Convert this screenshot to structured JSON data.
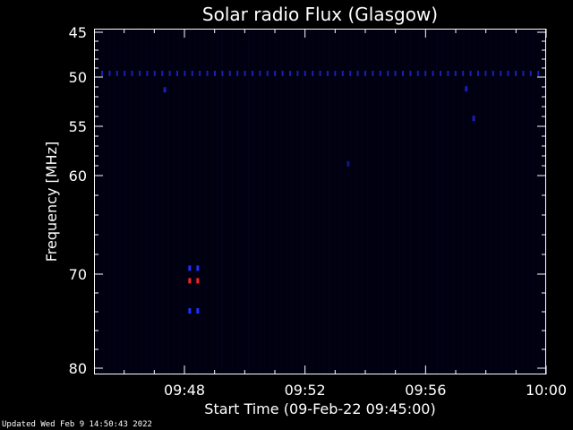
{
  "chart_data": {
    "type": "heatmap",
    "title": "Solar radio Flux (Glasgow)",
    "xlabel": "Start Time (09-Feb-22 09:45:00)",
    "ylabel": "Frequency [MHz]",
    "x_range": [
      "09:45",
      "10:00"
    ],
    "y_range": [
      45,
      80
    ],
    "y_inverted": true,
    "x_ticks": [
      "09:48",
      "09:52",
      "09:56",
      "10:00"
    ],
    "y_ticks": [
      45,
      50,
      55,
      60,
      70,
      80
    ],
    "grid": false,
    "background_color": "#000010",
    "features": [
      {
        "description": "persistent band",
        "freq": 49.6,
        "time_start": "09:45",
        "time_end": "10:00",
        "color": "#1c1cb8",
        "intensity": "low"
      },
      {
        "description": "burst",
        "freq": 69.4,
        "time": "09:48:15",
        "color": "#2030ff",
        "intensity": "medium"
      },
      {
        "description": "burst",
        "freq": 70.7,
        "time": "09:48:15",
        "color": "#ff2020",
        "intensity": "high"
      },
      {
        "description": "burst",
        "freq": 73.9,
        "time": "09:48:15",
        "color": "#2030ff",
        "intensity": "medium"
      },
      {
        "description": "spot",
        "freq": 51.3,
        "time": "09:47:20",
        "color": "#1c1cb8",
        "intensity": "low"
      },
      {
        "description": "spot",
        "freq": 51.2,
        "time": "09:57:20",
        "color": "#1c1cb8",
        "intensity": "low"
      },
      {
        "description": "spot",
        "freq": 54.2,
        "time": "09:57:35",
        "color": "#1c1cb8",
        "intensity": "low"
      },
      {
        "description": "spot",
        "freq": 58.8,
        "time": "09:53:25",
        "color": "#151580",
        "intensity": "low"
      }
    ]
  },
  "footer": {
    "updated": "Updated Wed Feb  9 14:50:43 2022"
  }
}
